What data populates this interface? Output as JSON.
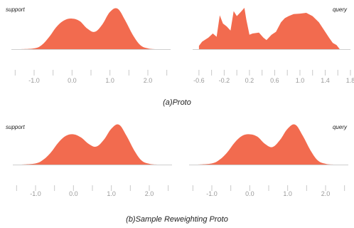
{
  "colors": {
    "fill": "#F26B4F",
    "baseline": "#cfcfcf",
    "tick": "#c8c8c8",
    "label": "#999999"
  },
  "groups": [
    {
      "caption": "(a)Proto",
      "panels": [
        "support-a",
        "query-a"
      ]
    },
    {
      "caption": "(b)Sample Reweighting Proto",
      "panels": [
        "support-b",
        "query-b"
      ]
    }
  ],
  "chart_data": [
    {
      "id": "support-a",
      "type": "area",
      "title": "support",
      "xlim": [
        -1.6,
        2.6
      ],
      "ylim": [
        0,
        1
      ],
      "xticks": [
        -1.0,
        0.0,
        1.0,
        2.0
      ],
      "xticklabels": [
        "-1.0",
        "0.0",
        "1.0",
        "2.0"
      ],
      "minor_xticks": [
        -1.5,
        -0.5,
        0.5,
        1.5,
        2.5
      ],
      "x": [
        -1.4,
        -1.0,
        -0.8,
        -0.6,
        -0.4,
        -0.2,
        0.0,
        0.2,
        0.4,
        0.6,
        0.8,
        1.0,
        1.2,
        1.4,
        1.6,
        1.8,
        2.0,
        2.2
      ],
      "y": [
        0.0,
        0.02,
        0.1,
        0.3,
        0.55,
        0.7,
        0.74,
        0.68,
        0.5,
        0.42,
        0.6,
        0.9,
        0.98,
        0.7,
        0.35,
        0.1,
        0.02,
        0.0
      ]
    },
    {
      "id": "query-a",
      "type": "area",
      "title": "query",
      "xlim": [
        -0.7,
        1.8
      ],
      "ylim": [
        0,
        1
      ],
      "xticks": [
        -0.6,
        -0.2,
        0.2,
        0.6,
        1.0,
        1.4,
        1.8
      ],
      "xticklabels": [
        "-0.6",
        "-0.2",
        "0.2",
        "0.6",
        "1.0",
        "1.4",
        "1.8"
      ],
      "minor_xticks": [
        -0.4,
        0.0,
        0.4,
        0.8,
        1.2,
        1.6
      ],
      "x": [
        -0.6,
        -0.55,
        -0.45,
        -0.38,
        -0.32,
        -0.27,
        -0.22,
        -0.16,
        -0.1,
        -0.05,
        0.0,
        0.05,
        0.12,
        0.15,
        0.2,
        0.25,
        0.35,
        0.42,
        0.47,
        0.55,
        0.62,
        0.7,
        0.76,
        0.82,
        0.9,
        1.0,
        1.1,
        1.2,
        1.3,
        1.4,
        1.46,
        1.52,
        1.58,
        1.63
      ],
      "y": [
        0.08,
        0.18,
        0.28,
        0.38,
        0.3,
        0.82,
        0.62,
        0.55,
        0.45,
        0.92,
        0.8,
        0.88,
        1.0,
        0.72,
        0.35,
        0.38,
        0.4,
        0.28,
        0.22,
        0.35,
        0.42,
        0.65,
        0.75,
        0.8,
        0.85,
        0.86,
        0.88,
        0.8,
        0.65,
        0.42,
        0.28,
        0.15,
        0.1,
        0.0
      ]
    },
    {
      "id": "support-b",
      "type": "area",
      "title": "support",
      "xlim": [
        -1.6,
        2.6
      ],
      "ylim": [
        0,
        1
      ],
      "xticks": [
        -1.0,
        0.0,
        1.0,
        2.0
      ],
      "xticklabels": [
        "-1.0",
        "0.0",
        "1.0",
        "2.0"
      ],
      "minor_xticks": [
        -1.5,
        -0.5,
        0.5,
        1.5,
        2.5
      ],
      "x": [
        -1.4,
        -1.0,
        -0.8,
        -0.6,
        -0.4,
        -0.2,
        0.0,
        0.2,
        0.4,
        0.6,
        0.8,
        1.0,
        1.2,
        1.4,
        1.6,
        1.8,
        2.0,
        2.2
      ],
      "y": [
        0.0,
        0.03,
        0.12,
        0.3,
        0.55,
        0.72,
        0.76,
        0.68,
        0.52,
        0.45,
        0.62,
        0.9,
        1.0,
        0.72,
        0.36,
        0.1,
        0.02,
        0.0
      ]
    },
    {
      "id": "query-b",
      "type": "area",
      "title": "query",
      "xlim": [
        -1.6,
        2.6
      ],
      "ylim": [
        0,
        1
      ],
      "xticks": [
        -1.0,
        0.0,
        1.0,
        2.0
      ],
      "xticklabels": [
        "-1.0",
        "0.0",
        "1.0",
        "2.0"
      ],
      "minor_xticks": [
        -1.5,
        -0.5,
        0.5,
        1.5,
        2.5
      ],
      "x": [
        -1.4,
        -1.0,
        -0.8,
        -0.6,
        -0.4,
        -0.2,
        0.0,
        0.2,
        0.4,
        0.6,
        0.8,
        1.0,
        1.2,
        1.4,
        1.6,
        1.8,
        2.0,
        2.2
      ],
      "y": [
        0.0,
        0.03,
        0.12,
        0.3,
        0.55,
        0.72,
        0.76,
        0.7,
        0.52,
        0.44,
        0.62,
        0.9,
        1.0,
        0.72,
        0.36,
        0.1,
        0.02,
        0.0
      ]
    }
  ]
}
